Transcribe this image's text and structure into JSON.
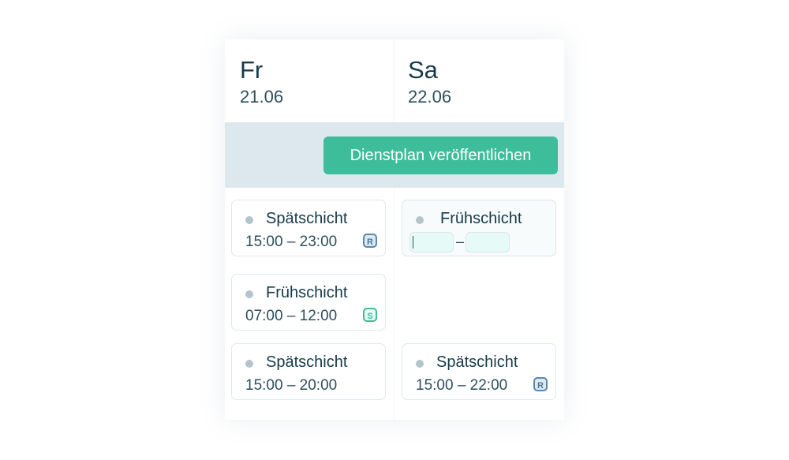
{
  "days": [
    {
      "name": "Fr",
      "date": "21.06"
    },
    {
      "name": "Sa",
      "date": "22.06"
    }
  ],
  "publish_button": "Dienstplan veröffentlichen",
  "shifts": [
    {
      "title": "Spätschicht",
      "time": "15:00 – 23:00",
      "badge": "R"
    },
    {
      "title": "Frühschicht",
      "time_separator": "–"
    },
    {
      "title": "Frühschicht",
      "time": "07:00 – 12:00",
      "badge": "S"
    },
    {
      "title": "Spätschicht",
      "time": "15:00 – 20:00"
    },
    {
      "title": "Spätschicht",
      "time": "15:00 – 22:00",
      "badge": "R"
    }
  ],
  "colors": {
    "accent": "#3dbd9a",
    "bar": "#dde8ee",
    "text": "#163a4a"
  }
}
